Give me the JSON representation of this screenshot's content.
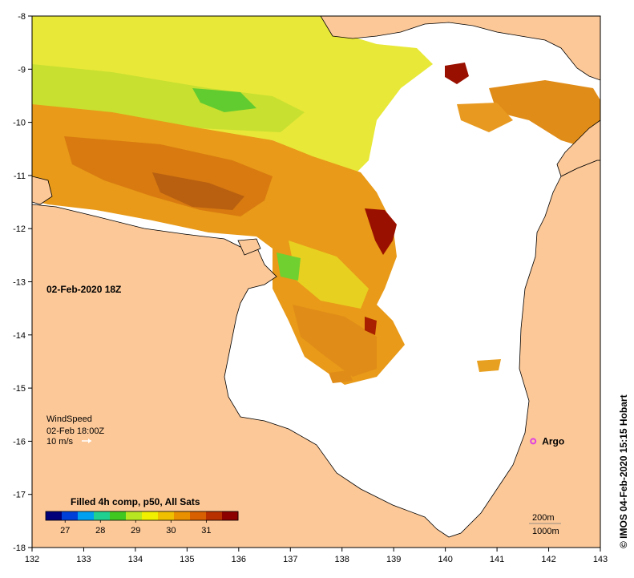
{
  "map": {
    "date_label": "02-Feb-2020 18Z",
    "copyright": "© IMOS 04-Feb-2020 15:15 Hobart",
    "x_axis": {
      "range": [
        132,
        143
      ],
      "ticks": [
        "132",
        "133",
        "134",
        "135",
        "136",
        "137",
        "138",
        "139",
        "140",
        "141",
        "142",
        "143"
      ]
    },
    "y_axis": {
      "range": [
        -8,
        -18
      ],
      "ticks": [
        "-8",
        "-9",
        "-10",
        "-11",
        "-12",
        "-13",
        "-14",
        "-15",
        "-16",
        "-17",
        "-18"
      ]
    },
    "wind_legend": {
      "title": "WindSpeed",
      "time": "02-Feb 18:00Z",
      "scale": "10 m/s"
    },
    "colorbar": {
      "title": "Filled 4h comp, p50, All Sats",
      "ticks": [
        "27",
        "28",
        "29",
        "30",
        "31"
      ],
      "colors": [
        "#00007a",
        "#0040d8",
        "#00a0f0",
        "#20d090",
        "#40c820",
        "#b8e620",
        "#f0f000",
        "#f0c000",
        "#e89000",
        "#d86000",
        "#b83000",
        "#8c0000"
      ]
    },
    "marker": {
      "label": "Argo",
      "lon": 141.7,
      "lat": -16.0,
      "color": "#e040e0"
    },
    "depth_legend": {
      "line1": "200m",
      "line2": "1000m"
    },
    "land_color": "#fcc898",
    "ocean_color": "#ffffff"
  }
}
